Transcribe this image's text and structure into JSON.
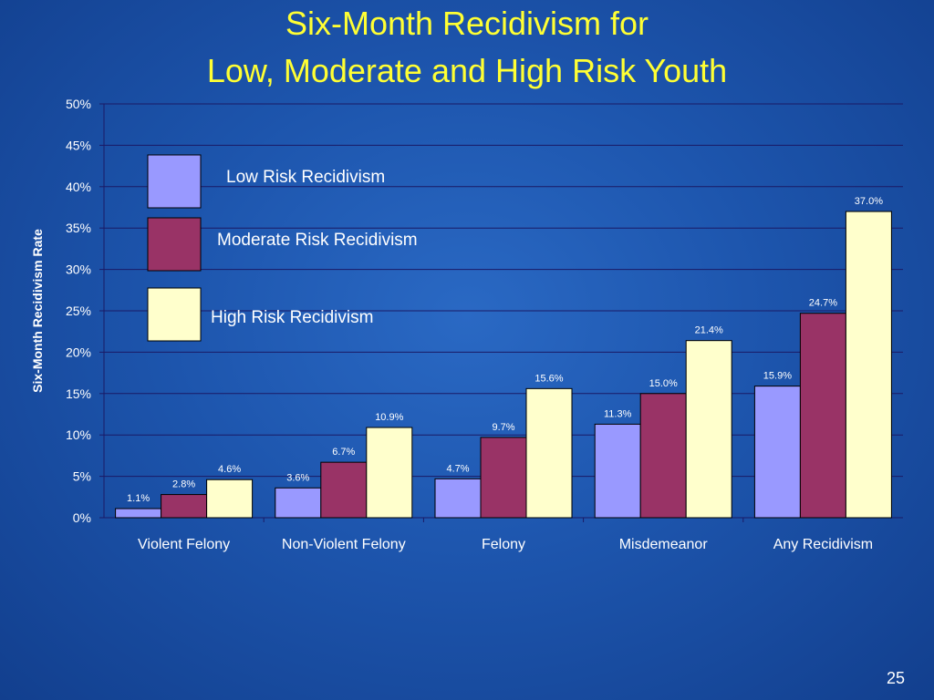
{
  "slide": {
    "title_line1": "Six-Month Recidivism for",
    "title_line2": "Low, Moderate and High Risk Youth",
    "page_number": "25"
  },
  "colors": {
    "title": "#ffff33",
    "text": "#ffffff",
    "grid": "#1a1a66",
    "low_risk": "#9999ff",
    "moderate_risk": "#993366",
    "high_risk": "#ffffcc"
  },
  "chart_data": {
    "type": "bar",
    "title": "Six-Month Recidivism for Low, Moderate and High Risk Youth",
    "ylabel": "Six-Month Recidivism Rate",
    "xlabel": "",
    "ylim": [
      0,
      50
    ],
    "yticks": [
      "0%",
      "5%",
      "10%",
      "15%",
      "20%",
      "25%",
      "30%",
      "35%",
      "40%",
      "45%",
      "50%"
    ],
    "grid": true,
    "legend_position": "top-left",
    "categories": [
      "Violent Felony",
      "Non-Violent Felony",
      "Felony",
      "Misdemeanor",
      "Any Recidivism"
    ],
    "series": [
      {
        "name": "Low Risk Recidivism",
        "color": "#9999ff",
        "values": [
          1.1,
          3.6,
          4.7,
          11.3,
          15.9
        ],
        "labels": [
          "1.1%",
          "3.6%",
          "4.7%",
          "11.3%",
          "15.9%"
        ]
      },
      {
        "name": "Moderate Risk Recidivism",
        "color": "#993366",
        "values": [
          2.8,
          6.7,
          9.7,
          15.0,
          24.7
        ],
        "labels": [
          "2.8%",
          "6.7%",
          "9.7%",
          "15.0%",
          "24.7%"
        ]
      },
      {
        "name": "High Risk Recidivism",
        "color": "#ffffcc",
        "values": [
          4.6,
          10.9,
          15.6,
          21.4,
          37.0
        ],
        "labels": [
          "4.6%",
          "10.9%",
          "15.6%",
          "21.4%",
          "37.0%"
        ]
      }
    ]
  }
}
